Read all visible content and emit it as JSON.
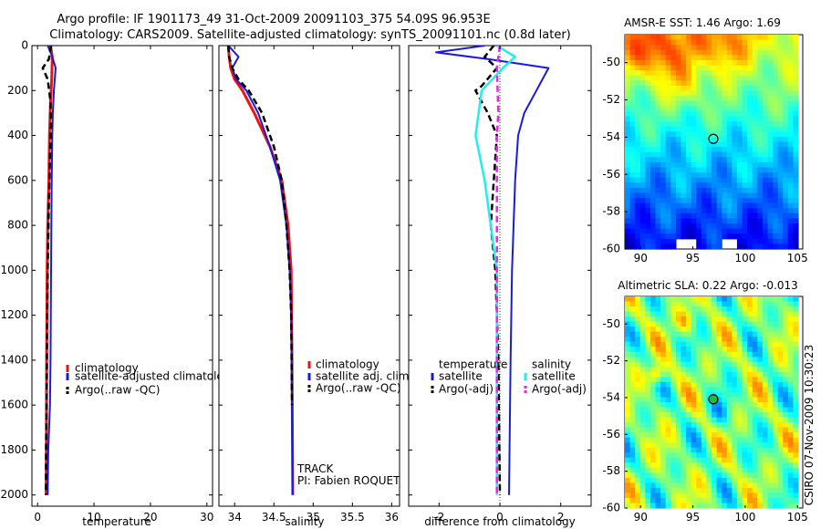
{
  "header": {
    "line1": "Argo profile: IF 1901173_49 31-Oct-2009 20091103_375 54.09S 96.953E",
    "line2": "Climatology: CARS2009. Satellite-adjusted climatology: synTS_20091101.nc (0.8d later)"
  },
  "colors": {
    "red": "#ee1111",
    "blue": "#1a1adf",
    "black": "#000000",
    "cyan": "#22eeee",
    "magenta": "#ee22ee"
  },
  "chart_data": [
    {
      "type": "line",
      "panel": "temperature",
      "xlabel": "temperature",
      "xlim": [
        -1,
        31
      ],
      "xticks": [
        "0",
        "10",
        "20",
        "30"
      ],
      "xtick_values": [
        0,
        10,
        20,
        30
      ],
      "ylim": [
        0,
        2050
      ],
      "yticks": [
        "0",
        "200",
        "400",
        "600",
        "800",
        "1000",
        "1200",
        "1400",
        "1600",
        "1800",
        "2000"
      ],
      "ytick_values": [
        0,
        200,
        400,
        600,
        800,
        1000,
        1200,
        1400,
        1600,
        1800,
        2000
      ],
      "legend": [
        "climatology",
        "satellite-adjusted climatology",
        "Argo(..raw -QC)"
      ],
      "series": [
        {
          "name": "climatology",
          "color": "red",
          "style": "solid",
          "width": 3,
          "x": [
            2.3,
            2.6,
            2.5,
            2.3,
            2.1,
            2.0,
            1.8,
            1.7,
            1.6,
            1.55,
            1.5
          ],
          "y": [
            0,
            50,
            150,
            250,
            400,
            600,
            800,
            1000,
            1400,
            1800,
            2000
          ]
        },
        {
          "name": "satellite-adjusted climatology",
          "color": "blue",
          "style": "solid",
          "width": 2,
          "x": [
            1.8,
            2.6,
            3.2,
            2.9,
            2.7,
            2.6,
            2.5,
            2.45,
            2.4,
            2.3,
            2.2,
            1.9,
            1.8
          ],
          "y": [
            0,
            50,
            100,
            200,
            300,
            400,
            600,
            800,
            1000,
            1400,
            1600,
            1800,
            2000
          ]
        },
        {
          "name": "Argo(..raw -QC)",
          "color": "black",
          "style": "dash",
          "width": 2.5,
          "x": [
            2.4,
            2.0,
            0.9,
            1.8,
            2.3,
            2.4,
            2.2,
            2.0,
            1.8,
            1.7,
            1.6,
            1.5,
            1.5
          ],
          "y": [
            0,
            60,
            100,
            150,
            250,
            350,
            500,
            700,
            1000,
            1300,
            1600,
            1800,
            2000
          ]
        }
      ]
    },
    {
      "type": "line",
      "panel": "salinity",
      "xlabel": "salinity",
      "xlim": [
        33.8,
        36.1
      ],
      "xticks": [
        "34",
        "34.5",
        "35",
        "35.5",
        "36"
      ],
      "xtick_values": [
        34,
        34.5,
        35,
        35.5,
        36
      ],
      "ylim": [
        0,
        2050
      ],
      "legend": [
        "climatology",
        "satellite adj. clim.",
        "Argo(..raw -QC)"
      ],
      "annotations": [
        "TRACK",
        "PI: Fabien ROQUET"
      ],
      "series": [
        {
          "name": "climatology",
          "color": "red",
          "style": "solid",
          "width": 3,
          "x": [
            33.92,
            33.93,
            33.95,
            34.0,
            34.1,
            34.25,
            34.45,
            34.6,
            34.68,
            34.72,
            34.73,
            34.74
          ],
          "y": [
            0,
            50,
            100,
            150,
            200,
            300,
            450,
            600,
            800,
            1000,
            1400,
            2000
          ]
        },
        {
          "name": "satellite adj. clim.",
          "color": "blue",
          "style": "solid",
          "width": 2,
          "x": [
            33.92,
            34.05,
            33.97,
            34.02,
            34.15,
            34.3,
            34.45,
            34.58,
            34.66,
            34.7,
            34.72,
            34.73,
            34.74
          ],
          "y": [
            0,
            50,
            100,
            150,
            200,
            300,
            450,
            600,
            800,
            1000,
            1200,
            1600,
            2000
          ]
        },
        {
          "name": "Argo(..raw -QC)",
          "color": "black",
          "style": "dash",
          "width": 2.5,
          "x": [
            33.92,
            33.93,
            33.97,
            34.05,
            34.18,
            34.35,
            34.5,
            34.6,
            34.66,
            34.7,
            34.72,
            34.73
          ],
          "y": [
            0,
            50,
            100,
            150,
            200,
            300,
            450,
            600,
            800,
            1000,
            1200,
            1600
          ]
        }
      ]
    },
    {
      "type": "line",
      "panel": "difference",
      "xlabel": "difference from climatology",
      "xlim": [
        -3,
        3
      ],
      "xticks": [
        "-2",
        "0",
        "2"
      ],
      "xtick_values": [
        -2,
        0,
        2
      ],
      "ylim": [
        0,
        2050
      ],
      "legend_groups": [
        {
          "heading": "temperature",
          "items": [
            "satellite",
            "Argo(-adj)"
          ]
        },
        {
          "heading": "salinity",
          "items": [
            "satellite",
            "Argo(-adj)"
          ]
        }
      ],
      "series": [
        {
          "name": "temperature satellite",
          "color": "blue",
          "style": "solid",
          "width": 2,
          "x": [
            -0.5,
            -2.1,
            -0.4,
            1.6,
            1.2,
            0.8,
            0.6,
            0.5,
            0.45,
            0.4,
            0.35,
            0.3
          ],
          "y": [
            0,
            30,
            60,
            100,
            200,
            300,
            400,
            600,
            800,
            1000,
            1400,
            2000
          ]
        },
        {
          "name": "temperature Argo(-adj)",
          "color": "black",
          "style": "dash",
          "width": 2.5,
          "x": [
            -0.2,
            -0.5,
            -0.1,
            -0.6,
            -0.8,
            -0.4,
            -0.1,
            -0.2,
            -0.3,
            -0.15,
            -0.1,
            -0.05,
            0
          ],
          "y": [
            0,
            50,
            100,
            180,
            200,
            300,
            400,
            600,
            800,
            1000,
            1200,
            1400,
            2000
          ]
        },
        {
          "name": "salinity satellite",
          "color": "cyan",
          "style": "solid",
          "width": 2.5,
          "x": [
            -0.1,
            0.5,
            0.1,
            -0.6,
            -0.8,
            -0.5,
            -0.3,
            -0.1,
            -0.1,
            -0.1,
            -0.1
          ],
          "y": [
            0,
            50,
            100,
            200,
            400,
            600,
            800,
            1000,
            1200,
            1600,
            2000
          ]
        },
        {
          "name": "salinity Argo(-adj)",
          "color": "magenta",
          "style": "dash",
          "width": 2.5,
          "x": [
            0,
            -0.1,
            -0.05,
            -0.1,
            -0.1,
            -0.1,
            -0.1,
            -0.1
          ],
          "y": [
            0,
            100,
            300,
            400,
            600,
            1000,
            1400,
            2000
          ]
        }
      ]
    },
    {
      "type": "heatmap",
      "panel": "sst-map",
      "title": "AMSR-E SST: 1.46 Argo: 1.69",
      "xlim": [
        88.5,
        105.5
      ],
      "xticks": [
        "90",
        "95",
        "100",
        "105"
      ],
      "xtick_values": [
        90,
        95,
        100,
        105
      ],
      "ylim": [
        -60,
        -48.5
      ],
      "yticks": [
        "-50",
        "-52",
        "-54",
        "-56",
        "-58",
        "-60"
      ],
      "ytick_values": [
        -50,
        -52,
        -54,
        -56,
        -58,
        -60
      ],
      "marker": {
        "lon": 96.953,
        "lat": -54.09
      }
    },
    {
      "type": "heatmap",
      "panel": "sla-map",
      "title": "Altimetric SLA: 0.22 Argo: -0.013",
      "xlim": [
        88.5,
        105.5
      ],
      "xticks": [
        "90",
        "95",
        "100",
        "105"
      ],
      "xtick_values": [
        90,
        95,
        100,
        105
      ],
      "ylim": [
        -60,
        -48.5
      ],
      "yticks": [
        "-50",
        "-52",
        "-54",
        "-56",
        "-58",
        "-60"
      ],
      "ytick_values": [
        -50,
        -52,
        -54,
        -56,
        -58,
        -60
      ],
      "marker": {
        "lon": 96.953,
        "lat": -54.09
      }
    }
  ],
  "footer": {
    "stamp": "CSIRO 07-Nov-2009 10:30:23"
  }
}
